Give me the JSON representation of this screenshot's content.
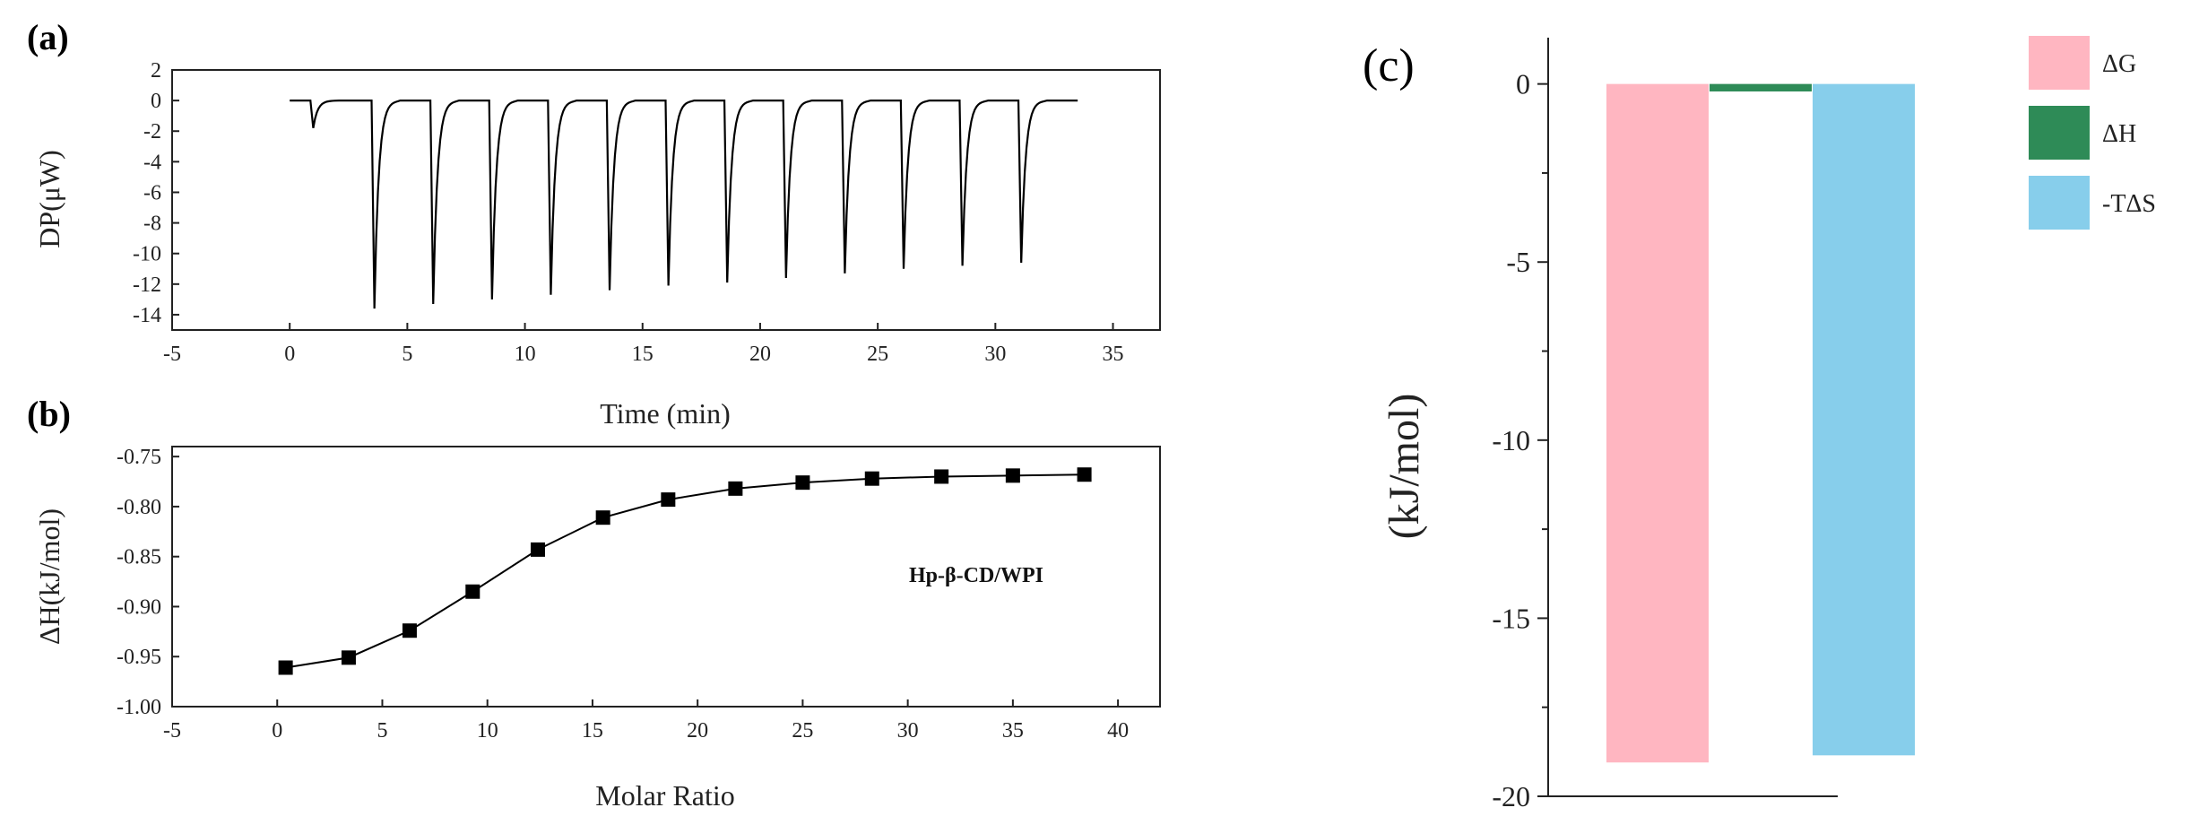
{
  "figure": {
    "panel_a_tag": "(a)",
    "panel_b_tag": "(b)",
    "panel_c_tag": "(c)"
  },
  "chart_data": [
    {
      "id": "a",
      "type": "line",
      "title": "",
      "xlabel": "Time (min)",
      "ylabel": "DP(μW)",
      "xlim": [
        -5,
        37
      ],
      "ylim": [
        -15,
        2
      ],
      "xticks": [
        -5,
        0,
        5,
        10,
        15,
        20,
        25,
        30,
        35
      ],
      "yticks": [
        2,
        0,
        -2,
        -4,
        -6,
        -8,
        -10,
        -12,
        -14
      ],
      "baseline": 0,
      "trace_start": 0,
      "trace_end": 33.5,
      "injections": [
        {
          "time": 1.0,
          "depth": -1.8
        },
        {
          "time": 3.6,
          "depth": -13.6
        },
        {
          "time": 6.1,
          "depth": -13.3
        },
        {
          "time": 8.6,
          "depth": -13.0
        },
        {
          "time": 11.1,
          "depth": -12.7
        },
        {
          "time": 13.6,
          "depth": -12.4
        },
        {
          "time": 16.1,
          "depth": -12.1
        },
        {
          "time": 18.6,
          "depth": -11.9
        },
        {
          "time": 21.1,
          "depth": -11.6
        },
        {
          "time": 23.6,
          "depth": -11.3
        },
        {
          "time": 26.1,
          "depth": -11.0
        },
        {
          "time": 28.6,
          "depth": -10.8
        },
        {
          "time": 31.1,
          "depth": -10.6
        }
      ]
    },
    {
      "id": "b",
      "type": "scatter",
      "title": "",
      "xlabel": "Molar Ratio",
      "ylabel": "ΔH(kJ/mol)",
      "annotation": "Hp-β-CD/WPI",
      "xlim": [
        -5,
        42
      ],
      "ylim": [
        -1.0,
        -0.74
      ],
      "xticks": [
        -5,
        0,
        5,
        10,
        15,
        20,
        25,
        30,
        35,
        40
      ],
      "yticks": [
        -0.75,
        -0.8,
        -0.85,
        -0.9,
        -0.95,
        -1.0
      ],
      "ytick_labels": [
        "-0.75",
        "-0.80",
        "-0.85",
        "-0.90",
        "-0.95",
        "-1.00"
      ],
      "x": [
        0.4,
        3.4,
        6.3,
        9.3,
        12.4,
        15.5,
        18.6,
        21.8,
        25.0,
        28.3,
        31.6,
        35.0,
        38.4
      ],
      "y": [
        -0.961,
        -0.951,
        -0.924,
        -0.885,
        -0.843,
        -0.811,
        -0.793,
        -0.782,
        -0.776,
        -0.772,
        -0.77,
        -0.769,
        -0.768
      ]
    },
    {
      "id": "c",
      "type": "bar",
      "title": "",
      "xlabel": "",
      "ylabel": "(kJ/mol)",
      "ylim": [
        -20,
        1.3
      ],
      "yticks": [
        0,
        -5,
        -10,
        -15,
        -20
      ],
      "categories": [
        "ΔG",
        "ΔH",
        "-TΔS"
      ],
      "values": [
        -19.05,
        -0.21,
        -18.85
      ],
      "colors": [
        "#ffb6c1",
        "#2e8b57",
        "#87ceeb"
      ],
      "legend": [
        {
          "label": "ΔG",
          "color": "#ffb6c1"
        },
        {
          "label": "ΔH",
          "color": "#2e8b57"
        },
        {
          "label": "-TΔS",
          "color": "#87ceeb"
        }
      ],
      "legend_position": "top-right"
    }
  ]
}
